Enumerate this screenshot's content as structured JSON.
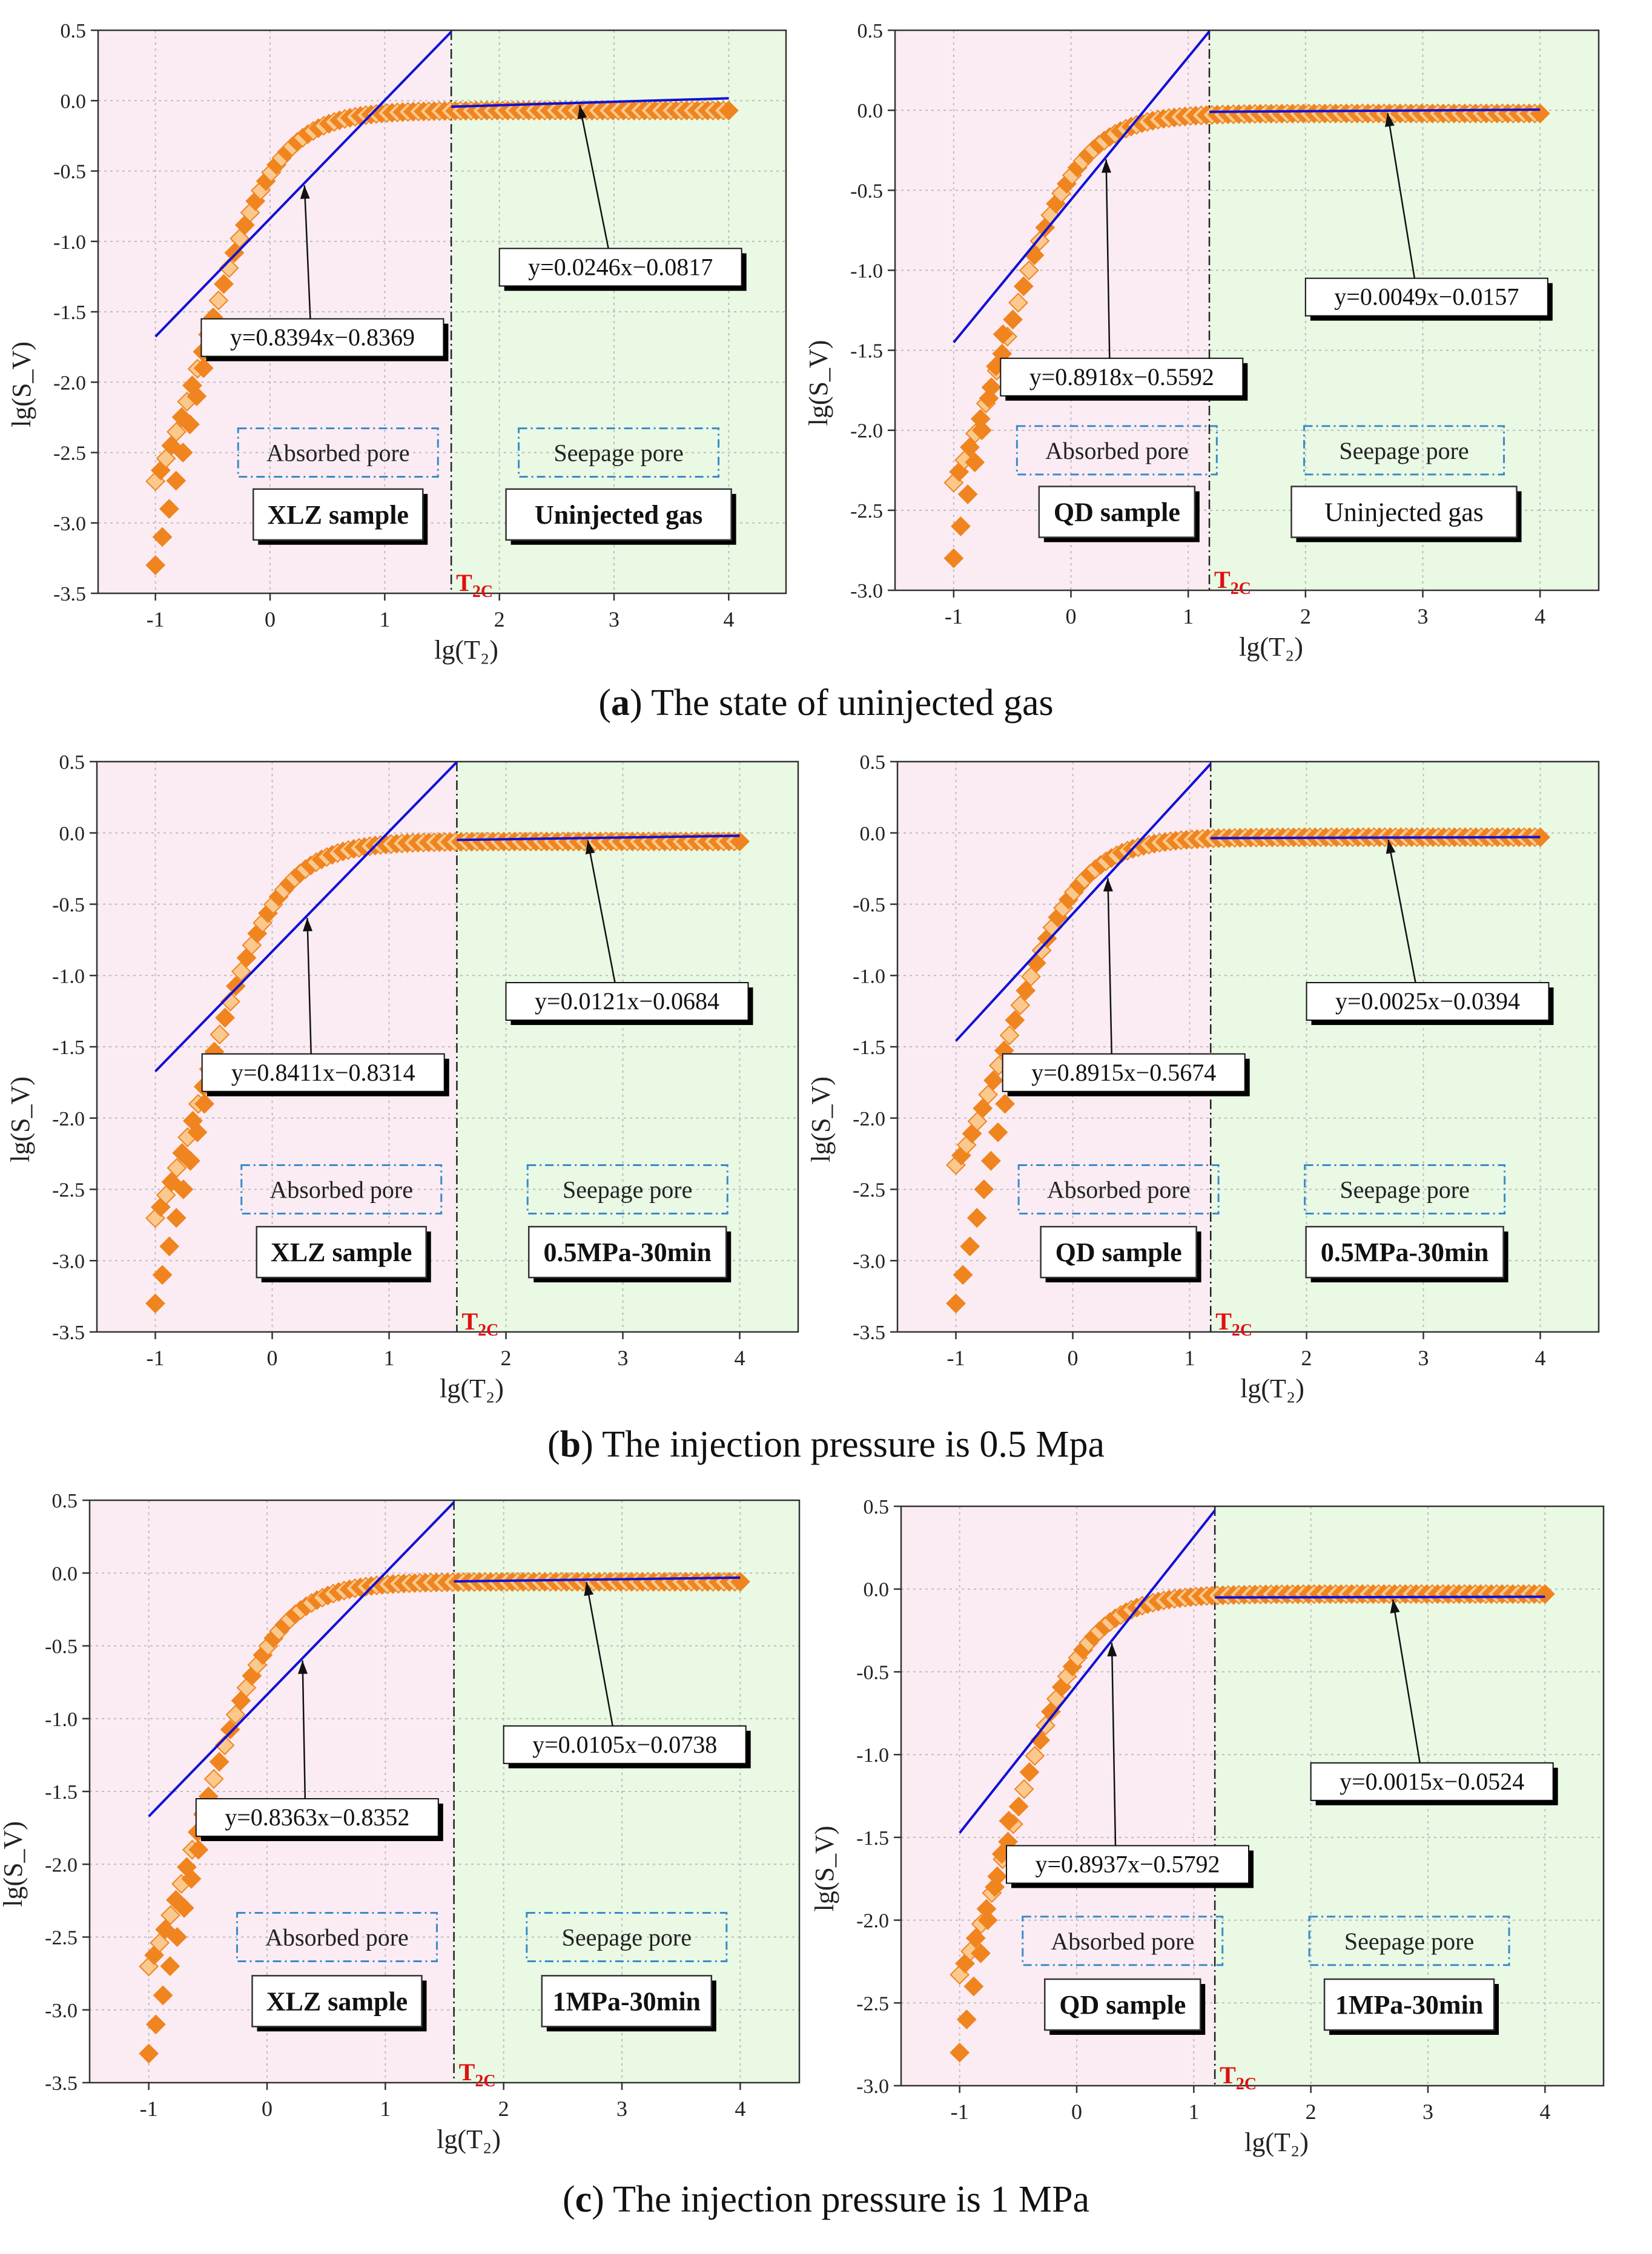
{
  "figure": {
    "captions": [
      {
        "letter": "a",
        "text": "The state of uninjected gas"
      },
      {
        "letter": "b",
        "text": "The injection pressure is 0.5 Mpa"
      },
      {
        "letter": "c",
        "text": "The injection pressure is 1 MPa"
      }
    ],
    "colors": {
      "absorbed_bg": "#fbecf3",
      "seepage_bg": "#e9f9e4",
      "marker_fill": "#f0841e",
      "marker_light": "#fbc98e",
      "fit_line": "#1010d8",
      "box_border": "#3a8bc8",
      "t2c": "#e01010"
    }
  },
  "chart_data": [
    {
      "id": "a-xlz",
      "type": "scatter",
      "xlabel": "lg(T₂)",
      "ylabel": "lg(S_V)",
      "xlim": [
        -1.5,
        4.5
      ],
      "ylim": [
        -3.5,
        0.5
      ],
      "xticks": [
        "-1",
        "0",
        "1",
        "2",
        "3",
        "4"
      ],
      "yticks": [
        "-3.5",
        "-3.0",
        "-2.5",
        "-2.0",
        "-1.5",
        "-1.0",
        "-0.5",
        "0.0",
        "0.5"
      ],
      "t2c": 1.58,
      "t2c_label": "T2C",
      "plateau": -0.07,
      "fit_absorbed": {
        "slope": 0.8394,
        "intercept": -0.8369,
        "label": "y=0.8394x−0.8369"
      },
      "fit_seepage": {
        "slope": 0.0246,
        "intercept": -0.0817,
        "label": "y=0.0246x−0.0817"
      },
      "sample_label": "XLZ sample",
      "state_label": "Uninjected gas",
      "absorbed_label": "Absorbed pore",
      "seepage_label": "Seepage pore"
    },
    {
      "id": "a-qd",
      "type": "scatter",
      "xlabel": "lg(T₂)",
      "ylabel": "lg(S_V)",
      "xlim": [
        -1.5,
        4.5
      ],
      "ylim": [
        -3.0,
        0.5
      ],
      "xticks": [
        "-1",
        "0",
        "1",
        "2",
        "3",
        "4"
      ],
      "yticks": [
        "-3.0",
        "-2.5",
        "-2.0",
        "-1.5",
        "-1.0",
        "-0.5",
        "0.0",
        "0.5"
      ],
      "t2c": 1.18,
      "t2c_label": "T2C",
      "plateau": -0.02,
      "fit_absorbed": {
        "slope": 0.8918,
        "intercept": -0.5592,
        "label": "y=0.8918x−0.5592"
      },
      "fit_seepage": {
        "slope": 0.0049,
        "intercept": -0.0157,
        "label": "y=0.0049x−0.0157"
      },
      "sample_label": "QD sample",
      "state_label": "Uninjected gas",
      "absorbed_label": "Absorbed pore",
      "seepage_label": "Seepage pore"
    },
    {
      "id": "b-xlz",
      "type": "scatter",
      "xlabel": "lg(T₂)",
      "ylabel": "lg(S_V)",
      "xlim": [
        -1.5,
        4.5
      ],
      "ylim": [
        -3.5,
        0.5
      ],
      "xticks": [
        "-1",
        "0",
        "1",
        "2",
        "3",
        "4"
      ],
      "yticks": [
        "-3.5",
        "-3.0",
        "-2.5",
        "-2.0",
        "-1.5",
        "-1.0",
        "-0.5",
        "0.0",
        "0.5"
      ],
      "t2c": 1.58,
      "t2c_label": "T2C",
      "plateau": -0.06,
      "fit_absorbed": {
        "slope": 0.8411,
        "intercept": -0.8314,
        "label": "y=0.8411x−0.8314"
      },
      "fit_seepage": {
        "slope": 0.0121,
        "intercept": -0.0684,
        "label": "y=0.0121x−0.0684"
      },
      "sample_label": "XLZ sample",
      "state_label": "0.5MPa-30min",
      "absorbed_label": "Absorbed pore",
      "seepage_label": "Seepage pore"
    },
    {
      "id": "b-qd",
      "type": "scatter",
      "xlabel": "lg(T₂)",
      "ylabel": "lg(S_V)",
      "xlim": [
        -1.5,
        4.5
      ],
      "ylim": [
        -3.5,
        0.5
      ],
      "xticks": [
        "-1",
        "0",
        "1",
        "2",
        "3",
        "4"
      ],
      "yticks": [
        "-3.5",
        "-3.0",
        "-2.5",
        "-2.0",
        "-1.5",
        "-1.0",
        "-0.5",
        "0.0",
        "0.5"
      ],
      "t2c": 1.18,
      "t2c_label": "T2C",
      "plateau": -0.03,
      "fit_absorbed": {
        "slope": 0.8915,
        "intercept": -0.5674,
        "label": "y=0.8915x−0.5674"
      },
      "fit_seepage": {
        "slope": 0.0025,
        "intercept": -0.0394,
        "label": "y=0.0025x−0.0394"
      },
      "sample_label": "QD sample",
      "state_label": "0.5MPa-30min",
      "absorbed_label": "Absorbed pore",
      "seepage_label": "Seepage pore"
    },
    {
      "id": "c-xlz",
      "type": "scatter",
      "xlabel": "lg(T₂)",
      "ylabel": "lg(S_V)",
      "xlim": [
        -1.5,
        4.5
      ],
      "ylim": [
        -3.5,
        0.5
      ],
      "xticks": [
        "-1",
        "0",
        "1",
        "2",
        "3",
        "4"
      ],
      "yticks": [
        "-3.5",
        "-3.0",
        "-2.5",
        "-2.0",
        "-1.5",
        "-1.0",
        "-0.5",
        "0.0",
        "0.5"
      ],
      "t2c": 1.58,
      "t2c_label": "T2C",
      "plateau": -0.06,
      "fit_absorbed": {
        "slope": 0.8363,
        "intercept": -0.8352,
        "label": "y=0.8363x−0.8352"
      },
      "fit_seepage": {
        "slope": 0.0105,
        "intercept": -0.0738,
        "label": "y=0.0105x−0.0738"
      },
      "sample_label": "XLZ sample",
      "state_label": "1MPa-30min",
      "absorbed_label": "Absorbed pore",
      "seepage_label": "Seepage pore"
    },
    {
      "id": "c-qd",
      "type": "scatter",
      "xlabel": "lg(T₂)",
      "ylabel": "lg(S_V)",
      "xlim": [
        -1.5,
        4.5
      ],
      "ylim": [
        -3.0,
        0.5
      ],
      "xticks": [
        "-1",
        "0",
        "1",
        "2",
        "3",
        "4"
      ],
      "yticks": [
        "-3.0",
        "-2.5",
        "-2.0",
        "-1.5",
        "-1.0",
        "-0.5",
        "0.0",
        "0.5"
      ],
      "t2c": 1.18,
      "t2c_label": "T2C",
      "plateau": -0.03,
      "fit_absorbed": {
        "slope": 0.8937,
        "intercept": -0.5792,
        "label": "y=0.8937x−0.5792"
      },
      "fit_seepage": {
        "slope": 0.0015,
        "intercept": -0.0524,
        "label": "y=0.0015x−0.0524"
      },
      "sample_label": "QD sample",
      "state_label": "1MPa-30min",
      "absorbed_label": "Absorbed pore",
      "seepage_label": "Seepage pore"
    }
  ]
}
